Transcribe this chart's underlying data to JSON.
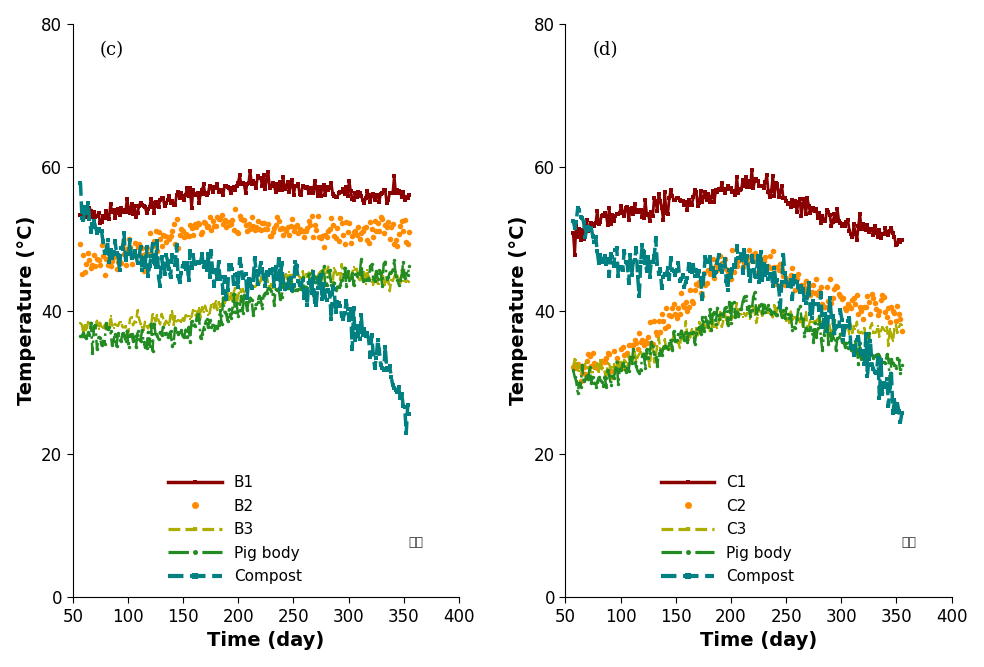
{
  "panel_c_label": "(c)",
  "panel_d_label": "(d)",
  "xlabel": "Time (day)",
  "ylabel": "Temperature (°C)",
  "xlim": [
    50,
    400
  ],
  "ylim": [
    0,
    80
  ],
  "xticks": [
    50,
    100,
    150,
    200,
    250,
    300,
    350,
    400
  ],
  "yticks": [
    0,
    20,
    40,
    60,
    80
  ],
  "color_B1": "#8B0000",
  "color_B2": "#FF8C00",
  "color_B3": "#ADAD00",
  "color_pigbody": "#228B22",
  "color_compost": "#008080",
  "watermark_text": "여우",
  "legend_c": [
    "B1",
    "B2",
    "B3",
    "Pig body",
    "Compost"
  ],
  "legend_d": [
    "C1",
    "C2",
    "C3",
    "Pig body",
    "Compost"
  ],
  "figsize": [
    9.84,
    6.67
  ],
  "dpi": 100
}
